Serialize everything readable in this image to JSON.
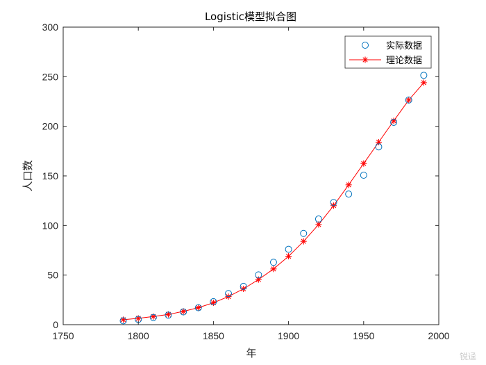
{
  "chart_data": {
    "type": "scatter",
    "title": "Logistic模型拟合图",
    "xlabel": "年",
    "ylabel": "人口数",
    "xlim": [
      1750,
      2000
    ],
    "ylim": [
      0,
      300
    ],
    "xticks": [
      1750,
      1800,
      1850,
      1900,
      1950,
      2000
    ],
    "yticks": [
      0,
      50,
      100,
      150,
      200,
      250,
      300
    ],
    "grid": false,
    "legend_position": "top-right",
    "series": [
      {
        "name": "实际数据",
        "style": "circle-markers",
        "color": "#0072BD",
        "x": [
          1790,
          1800,
          1810,
          1820,
          1830,
          1840,
          1850,
          1860,
          1870,
          1880,
          1890,
          1900,
          1910,
          1920,
          1930,
          1940,
          1950,
          1960,
          1970,
          1980,
          1990
        ],
        "y": [
          3.9,
          5.3,
          7.2,
          9.6,
          12.9,
          17.1,
          23.2,
          31.4,
          38.6,
          50.2,
          62.9,
          76.0,
          92.0,
          106.5,
          123.2,
          131.7,
          150.7,
          179.3,
          204.0,
          226.5,
          251.4
        ]
      },
      {
        "name": "理论数据",
        "style": "line-star-markers",
        "color": "#FF0000",
        "x": [
          1790,
          1800,
          1810,
          1820,
          1830,
          1840,
          1850,
          1860,
          1870,
          1880,
          1890,
          1900,
          1910,
          1920,
          1930,
          1940,
          1950,
          1960,
          1970,
          1980,
          1990
        ],
        "y": [
          5.0,
          6.4,
          8.2,
          10.4,
          13.4,
          17.2,
          22.1,
          28.3,
          36.1,
          45.5,
          56.2,
          69.0,
          84.0,
          101.0,
          120.0,
          141.0,
          162.5,
          184.0,
          205.5,
          226.5,
          244.0
        ]
      }
    ]
  },
  "watermark": "锐迳"
}
